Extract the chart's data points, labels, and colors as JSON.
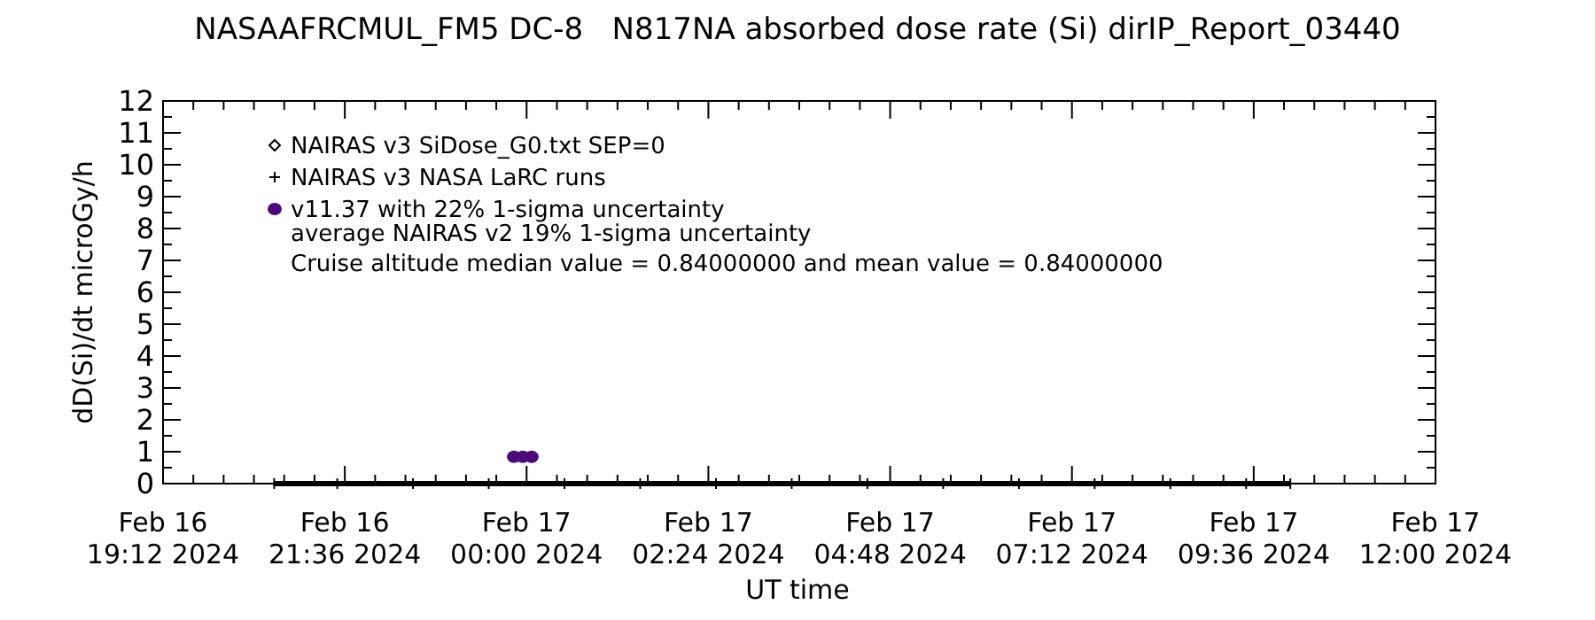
{
  "chart_data": {
    "type": "scatter",
    "title": "NASAAFRCMUL_FM5 DC-8   N817NA absorbed dose rate (Si) dirIP_Report_03440",
    "xlabel": "UT time",
    "ylabel": "dD(Si)/dt microGy/h",
    "xlim": [
      "2024-02-16T19:12",
      "2024-02-17T12:00"
    ],
    "xticks": [
      {
        "value": "2024-02-16T19:12",
        "label": "Feb 16\n19:12 2024"
      },
      {
        "value": "2024-02-16T21:36",
        "label": "Feb 16\n21:36 2024"
      },
      {
        "value": "2024-02-17T00:00",
        "label": "Feb 17\n00:00 2024"
      },
      {
        "value": "2024-02-17T02:24",
        "label": "Feb 17\n02:24 2024"
      },
      {
        "value": "2024-02-17T04:48",
        "label": "Feb 17\n04:48 2024"
      },
      {
        "value": "2024-02-17T07:12",
        "label": "Feb 17\n07:12 2024"
      },
      {
        "value": "2024-02-17T09:36",
        "label": "Feb 17\n09:36 2024"
      },
      {
        "value": "2024-02-17T12:00",
        "label": "Feb 17\n12:00 2024"
      }
    ],
    "ylim": [
      0,
      12
    ],
    "yticks": [
      0,
      1,
      2,
      3,
      4,
      5,
      6,
      7,
      8,
      9,
      10,
      11,
      12
    ],
    "legend": "top left",
    "grid": false,
    "series": [
      {
        "name": "NAIRAS v3 SiDose_G0.txt SEP=0",
        "color": "#000000",
        "marker": "diamond"
      },
      {
        "name": "NAIRAS v3 NASA LaRC runs",
        "color": "#000000",
        "marker": "cross",
        "type": "line",
        "x": [
          "2024-02-16T20:40",
          "2024-02-16T21:30",
          "2024-02-16T22:30",
          "2024-02-16T23:30",
          "2024-02-17T00:30",
          "2024-02-17T01:30",
          "2024-02-17T02:30",
          "2024-02-17T03:30",
          "2024-02-17T04:30",
          "2024-02-17T05:30",
          "2024-02-17T06:30",
          "2024-02-17T07:30",
          "2024-02-17T08:30",
          "2024-02-17T09:30",
          "2024-02-17T10:05"
        ],
        "values": [
          0,
          0,
          0,
          0,
          0,
          0,
          0,
          0,
          0,
          0,
          0,
          0,
          0,
          0,
          0
        ]
      },
      {
        "name": "v11.37 with 22% 1-sigma uncertainty",
        "color": "#4b0c7a",
        "marker": "circle",
        "x": [
          "2024-02-16T23:50",
          "2024-02-16T23:57",
          "2024-02-17T00:04"
        ],
        "values": [
          0.84,
          0.84,
          0.84
        ]
      }
    ],
    "annotations": [
      "average NAIRAS v2 19% 1-sigma uncertainty",
      "Cruise altitude median value = 0.84000000 and mean value = 0.84000000"
    ]
  }
}
